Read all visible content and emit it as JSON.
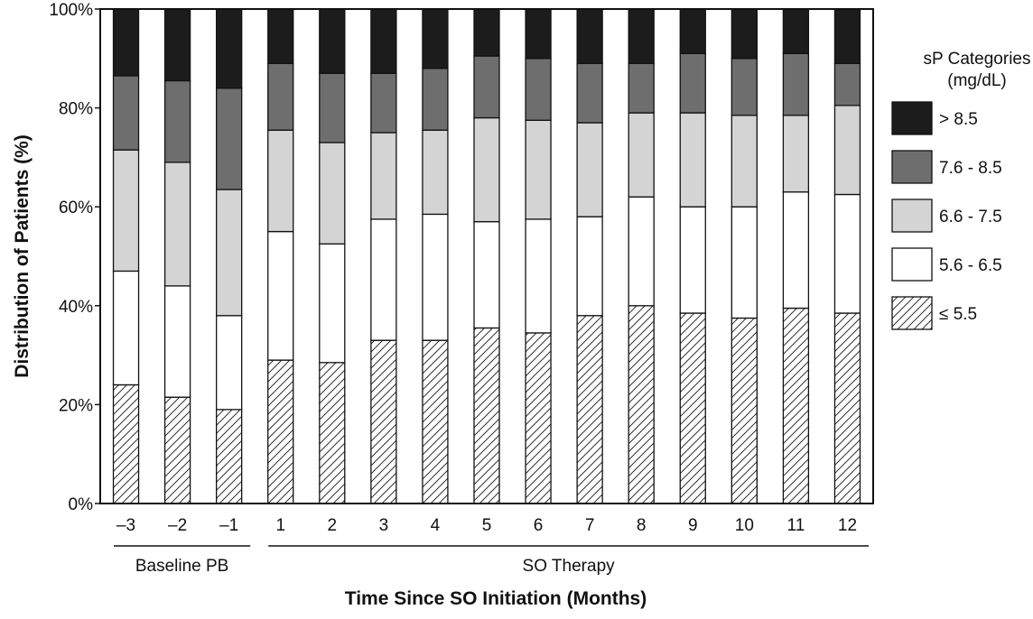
{
  "chart_data": {
    "type": "bar",
    "stacked": true,
    "categories": [
      "–3",
      "–2",
      "–1",
      "1",
      "2",
      "3",
      "4",
      "5",
      "6",
      "7",
      "8",
      "9",
      "10",
      "11",
      "12"
    ],
    "series": [
      {
        "name": "≤ 5.5",
        "pattern": "hatch",
        "color": "#ffffff",
        "values": [
          24,
          21.5,
          19,
          29,
          28.5,
          33,
          33,
          35.5,
          34.5,
          38,
          40,
          38.5,
          37.5,
          39.5,
          38.5
        ]
      },
      {
        "name": "5.6 - 6.5",
        "color": "#ffffff",
        "values": [
          23,
          22.5,
          19,
          26,
          24,
          24.5,
          25.5,
          21.5,
          23,
          20,
          22,
          21.5,
          22.5,
          23.5,
          24
        ]
      },
      {
        "name": "6.6 - 7.5",
        "color": "#d4d4d4",
        "values": [
          24.5,
          25,
          25.5,
          20.5,
          20.5,
          17.5,
          17,
          21,
          20,
          19,
          17,
          19,
          18.5,
          15.5,
          18
        ]
      },
      {
        "name": "7.6 - 8.5",
        "color": "#6e6e6e",
        "values": [
          15,
          16.5,
          20.5,
          13.5,
          14,
          12,
          12.5,
          12.5,
          12.5,
          12,
          10,
          12,
          11.5,
          12.5,
          8.5
        ]
      },
      {
        "name": "> 8.5",
        "color": "#1c1c1c",
        "values": [
          13.5,
          14.5,
          16,
          11,
          13,
          13,
          12,
          9.5,
          10,
          11,
          11,
          9,
          10,
          9,
          11
        ]
      }
    ],
    "ylabel": "Distribution of Patients (%)",
    "xlabel": "Time Since SO Initiation (Months)",
    "yticks": [
      "0%",
      "20%",
      "40%",
      "60%",
      "80%",
      "100%"
    ],
    "ylim": [
      0,
      100
    ],
    "groups": [
      {
        "label": "Baseline PB",
        "first_index": 0,
        "last_index": 2
      },
      {
        "label": "SO Therapy",
        "first_index": 3,
        "last_index": 14
      }
    ],
    "legend": {
      "title_lines": [
        "sP Categories",
        "(mg/dL)"
      ],
      "order": [
        "> 8.5",
        "7.6 - 8.5",
        "6.6 - 7.5",
        "5.6 - 6.5",
        "≤ 5.5"
      ],
      "position": "right"
    }
  }
}
